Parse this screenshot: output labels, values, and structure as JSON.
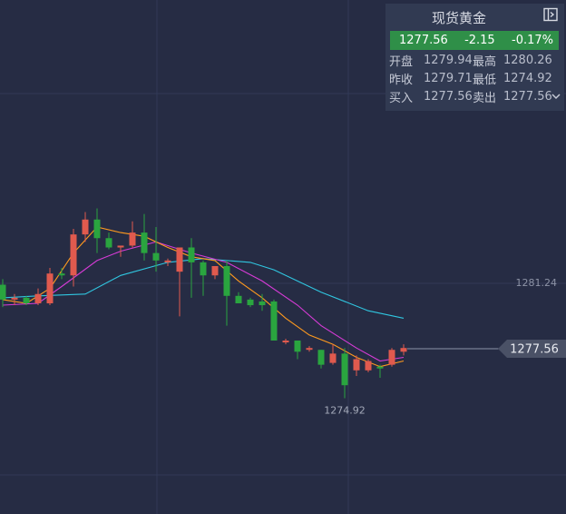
{
  "quote": {
    "title": "现货黄金",
    "last": "1277.56",
    "change": "-2.15",
    "change_pct": "-0.17%",
    "open_label": "开盘",
    "open": "1279.94",
    "high_label": "最高",
    "high": "1280.26",
    "prev_close_label": "昨收",
    "prev_close": "1279.71",
    "low_label": "最低",
    "low": "1274.92",
    "bid_label": "买入",
    "bid": "1277.56",
    "ask_label": "卖出",
    "ask": "1277.56",
    "up_color": "#e05a4e",
    "down_color": "#2aa53f",
    "panel_icon": "collapse-panel-icon",
    "expand_icon": "chevron-down-icon"
  },
  "chart_data": {
    "type": "candlestick",
    "current_price_label": "1277.56",
    "axis_level_label": "1281.24",
    "min_label": "1274.92",
    "candles": [
      {
        "o": 1281.0,
        "h": 1281.3,
        "c": 1280.2,
        "l": 1279.8
      },
      {
        "o": 1280.2,
        "h": 1280.5,
        "c": 1280.3,
        "l": 1279.9
      },
      {
        "o": 1280.3,
        "h": 1280.4,
        "c": 1280.0,
        "l": 1279.9
      },
      {
        "o": 1280.0,
        "h": 1280.8,
        "c": 1280.5,
        "l": 1279.9
      },
      {
        "o": 1280.0,
        "h": 1281.9,
        "c": 1281.6,
        "l": 1279.9
      },
      {
        "o": 1281.6,
        "h": 1281.9,
        "c": 1281.5,
        "l": 1281.3
      },
      {
        "o": 1281.5,
        "h": 1284.0,
        "c": 1283.7,
        "l": 1280.9
      },
      {
        "o": 1283.7,
        "h": 1284.9,
        "c": 1284.5,
        "l": 1283.3
      },
      {
        "o": 1284.5,
        "h": 1285.1,
        "c": 1283.5,
        "l": 1282.7
      },
      {
        "o": 1283.5,
        "h": 1283.8,
        "c": 1283.0,
        "l": 1282.9
      },
      {
        "o": 1283.0,
        "h": 1283.1,
        "c": 1283.1,
        "l": 1282.5
      },
      {
        "o": 1283.1,
        "h": 1284.4,
        "c": 1283.8,
        "l": 1283.0
      },
      {
        "o": 1283.8,
        "h": 1284.8,
        "c": 1282.7,
        "l": 1282.3
      },
      {
        "o": 1282.7,
        "h": 1284.1,
        "c": 1282.3,
        "l": 1281.7
      },
      {
        "o": 1282.3,
        "h": 1282.4,
        "c": 1282.3,
        "l": 1282.0
      },
      {
        "o": 1281.7,
        "h": 1283.0,
        "c": 1283.0,
        "l": 1279.3
      },
      {
        "o": 1283.0,
        "h": 1283.5,
        "c": 1282.2,
        "l": 1280.3
      },
      {
        "o": 1282.2,
        "h": 1282.3,
        "c": 1281.5,
        "l": 1280.4
      },
      {
        "o": 1281.5,
        "h": 1282.0,
        "c": 1282.0,
        "l": 1281.3
      },
      {
        "o": 1282.0,
        "h": 1282.3,
        "c": 1280.4,
        "l": 1278.8
      },
      {
        "o": 1280.4,
        "h": 1280.6,
        "c": 1280.0,
        "l": 1280.0
      },
      {
        "o": 1280.2,
        "h": 1280.3,
        "c": 1279.9,
        "l": 1279.8
      },
      {
        "o": 1280.1,
        "h": 1280.5,
        "c": 1279.9,
        "l": 1279.6
      },
      {
        "o": 1280.1,
        "h": 1280.2,
        "c": 1278.0,
        "l": 1278.0
      },
      {
        "o": 1277.9,
        "h": 1278.1,
        "c": 1278.0,
        "l": 1277.8
      },
      {
        "o": 1278.0,
        "h": 1278.0,
        "c": 1277.4,
        "l": 1277.0
      },
      {
        "o": 1277.6,
        "h": 1277.7,
        "c": 1277.6,
        "l": 1277.4
      },
      {
        "o": 1277.5,
        "h": 1277.5,
        "c": 1276.7,
        "l": 1276.5
      },
      {
        "o": 1276.8,
        "h": 1277.8,
        "c": 1277.3,
        "l": 1276.7
      },
      {
        "o": 1277.3,
        "h": 1277.6,
        "c": 1275.6,
        "l": 1274.9
      },
      {
        "o": 1276.4,
        "h": 1277.2,
        "c": 1277.0,
        "l": 1276.1
      },
      {
        "o": 1276.4,
        "h": 1277.0,
        "c": 1276.9,
        "l": 1276.3
      },
      {
        "o": 1276.6,
        "h": 1276.7,
        "c": 1276.5,
        "l": 1276.0
      },
      {
        "o": 1276.7,
        "h": 1277.6,
        "c": 1277.5,
        "l": 1276.6
      },
      {
        "o": 1277.4,
        "h": 1277.8,
        "c": 1277.6,
        "l": 1277.2
      }
    ],
    "ma_short": [
      [
        0,
        1280.2
      ],
      [
        2,
        1280.0
      ],
      [
        4,
        1280.8
      ],
      [
        6,
        1282.7
      ],
      [
        8,
        1284.1
      ],
      [
        10,
        1283.8
      ],
      [
        12,
        1283.6
      ],
      [
        14,
        1283.0
      ],
      [
        16,
        1282.5
      ],
      [
        18,
        1282.3
      ],
      [
        20,
        1281.2
      ],
      [
        22,
        1280.3
      ],
      [
        24,
        1279.2
      ],
      [
        26,
        1278.3
      ],
      [
        28,
        1277.8
      ],
      [
        30,
        1277.1
      ],
      [
        32,
        1276.6
      ],
      [
        34,
        1276.9
      ]
    ],
    "ma_mid": [
      [
        0,
        1279.9
      ],
      [
        3,
        1280.0
      ],
      [
        5,
        1280.9
      ],
      [
        8,
        1282.3
      ],
      [
        10,
        1282.8
      ],
      [
        13,
        1283.3
      ],
      [
        16,
        1282.7
      ],
      [
        19,
        1282.2
      ],
      [
        22,
        1281.2
      ],
      [
        25,
        1279.9
      ],
      [
        27,
        1278.8
      ],
      [
        30,
        1277.6
      ],
      [
        32,
        1276.9
      ],
      [
        34,
        1277.1
      ]
    ],
    "ma_long": [
      [
        0,
        1280.3
      ],
      [
        3,
        1280.4
      ],
      [
        7,
        1280.5
      ],
      [
        10,
        1281.5
      ],
      [
        14,
        1282.2
      ],
      [
        17,
        1282.4
      ],
      [
        21,
        1282.2
      ],
      [
        23,
        1281.8
      ],
      [
        27,
        1280.6
      ],
      [
        31,
        1279.6
      ],
      [
        34,
        1279.2
      ]
    ],
    "colors": {
      "ma_short": "#ff9a1e",
      "ma_mid": "#d63bd6",
      "ma_long": "#30c6e0",
      "grid": "#313956",
      "price_line": "#8c93a8",
      "axis_text": "#8d93a6"
    }
  }
}
